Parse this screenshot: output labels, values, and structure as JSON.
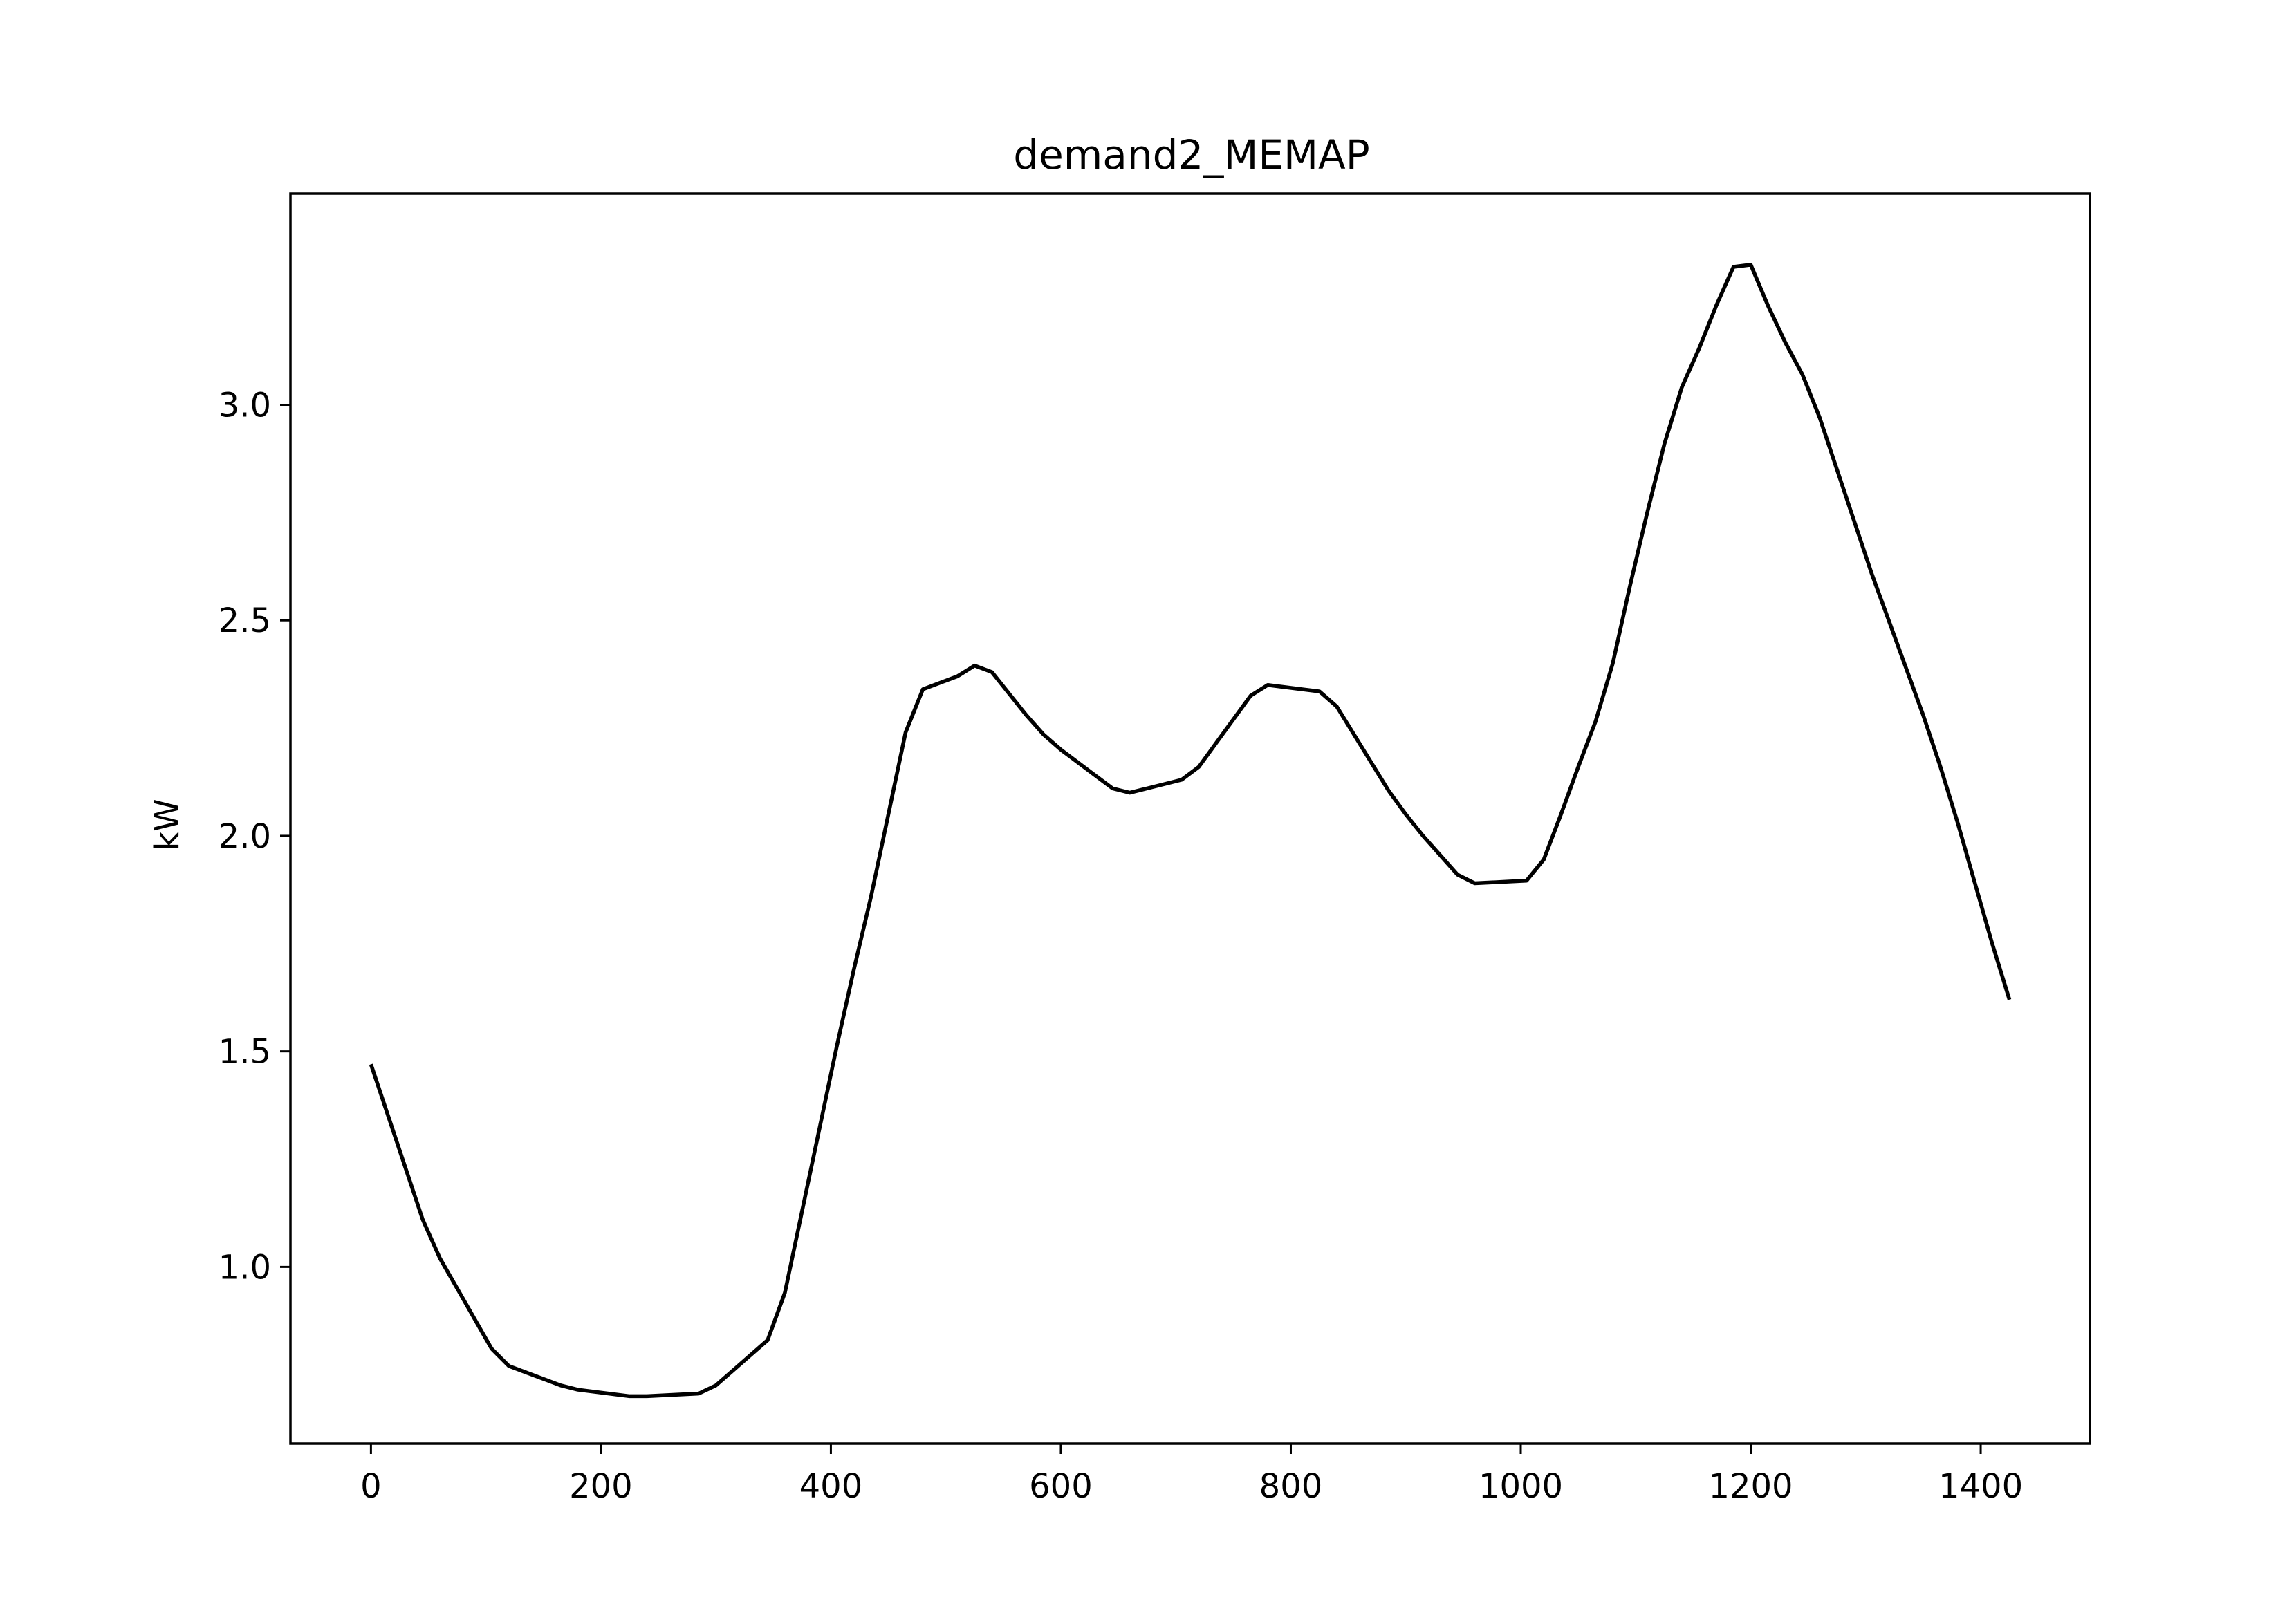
{
  "chart_data": {
    "type": "line",
    "title": "demand2_MEMAP",
    "xlabel": "",
    "ylabel": "kW",
    "xlim": [
      -70,
      1495
    ],
    "ylim": [
      0.59,
      3.49
    ],
    "grid": false,
    "legend": "none",
    "x_ticks": [
      0,
      200,
      400,
      600,
      800,
      1000,
      1200,
      1400
    ],
    "x_tick_labels": [
      "0",
      "200",
      "400",
      "600",
      "800",
      "1000",
      "1200",
      "1400"
    ],
    "y_ticks": [
      1.0,
      1.5,
      2.0,
      2.5,
      3.0
    ],
    "y_tick_labels": [
      "1.0",
      "1.5",
      "2.0",
      "2.5",
      "3.0"
    ],
    "colors": {
      "line": "#000000",
      "axes": "#000000",
      "background": "#ffffff"
    },
    "series": [
      {
        "x": [
          0,
          15,
          30,
          45,
          60,
          75,
          90,
          105,
          120,
          135,
          150,
          165,
          180,
          195,
          210,
          225,
          240,
          255,
          270,
          285,
          300,
          315,
          330,
          345,
          360,
          375,
          390,
          405,
          420,
          435,
          450,
          465,
          480,
          495,
          510,
          525,
          540,
          555,
          570,
          585,
          600,
          615,
          630,
          645,
          660,
          675,
          690,
          705,
          720,
          735,
          750,
          765,
          780,
          795,
          810,
          825,
          840,
          855,
          870,
          885,
          900,
          915,
          930,
          945,
          960,
          975,
          990,
          1005,
          1020,
          1035,
          1050,
          1065,
          1080,
          1095,
          1110,
          1125,
          1140,
          1155,
          1170,
          1185,
          1200,
          1215,
          1230,
          1245,
          1260,
          1275,
          1290,
          1305,
          1320,
          1335,
          1350,
          1365,
          1380,
          1395,
          1410,
          1425
        ],
        "values": [
          1.47,
          1.35,
          1.23,
          1.11,
          1.02,
          0.95,
          0.88,
          0.81,
          0.77,
          0.755,
          0.74,
          0.725,
          0.715,
          0.71,
          0.705,
          0.7,
          0.7,
          0.702,
          0.704,
          0.706,
          0.725,
          0.76,
          0.795,
          0.83,
          0.94,
          1.13,
          1.32,
          1.51,
          1.69,
          1.86,
          2.05,
          2.24,
          2.34,
          2.355,
          2.37,
          2.395,
          2.38,
          2.33,
          2.28,
          2.235,
          2.2,
          2.17,
          2.14,
          2.11,
          2.1,
          2.11,
          2.12,
          2.13,
          2.16,
          2.215,
          2.27,
          2.325,
          2.35,
          2.345,
          2.34,
          2.335,
          2.3,
          2.235,
          2.17,
          2.105,
          2.05,
          2.0,
          1.955,
          1.91,
          1.89,
          1.892,
          1.894,
          1.896,
          1.945,
          2.05,
          2.16,
          2.265,
          2.4,
          2.58,
          2.75,
          2.91,
          3.04,
          3.13,
          3.23,
          3.32,
          3.325,
          3.23,
          3.145,
          3.07,
          2.97,
          2.85,
          2.73,
          2.61,
          2.5,
          2.39,
          2.28,
          2.16,
          2.03,
          1.89,
          1.75,
          1.62
        ]
      }
    ]
  }
}
